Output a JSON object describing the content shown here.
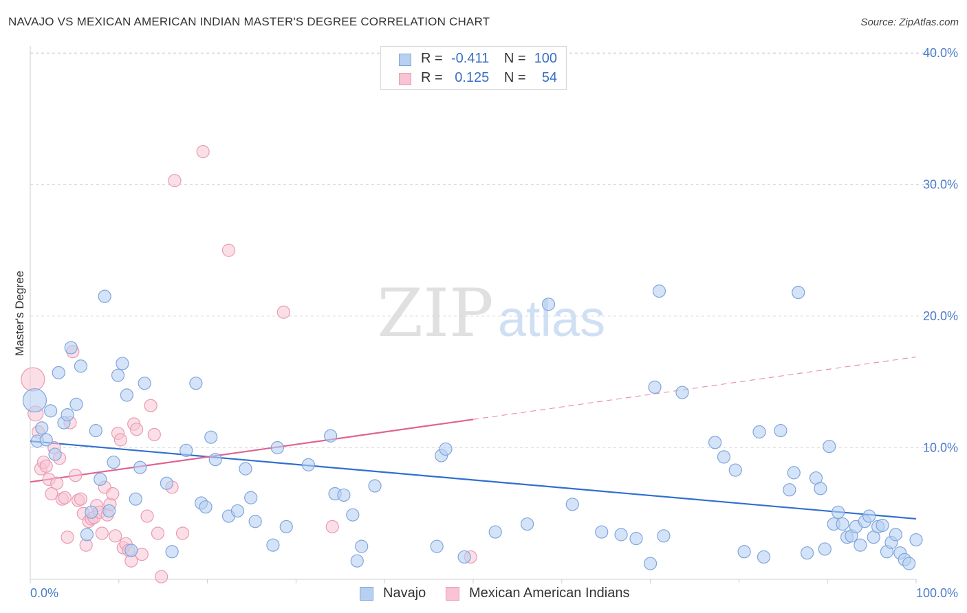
{
  "title": "NAVAJO VS MEXICAN AMERICAN INDIAN MASTER'S DEGREE CORRELATION CHART",
  "source": "Source: ZipAtlas.com",
  "watermark": {
    "zip": "ZIP",
    "atlas": "atlas"
  },
  "colors": {
    "navajo_fill": "#b7d0f2",
    "navajo_stroke": "#7ea6dc",
    "navajo_line": "#2f6fd1",
    "mexican_fill": "#f8c4d3",
    "mexican_stroke": "#ea9ab2",
    "mexican_line": "#e0628f",
    "tick_text": "#4a7cc9",
    "grid": "#dddddd"
  },
  "legend": {
    "rows": [
      {
        "r_label": "R =",
        "r_value": "-0.411",
        "n_label": "N =",
        "n_value": "100"
      },
      {
        "r_label": "R =",
        "r_value": "0.125",
        "n_label": "N =",
        "n_value": "54"
      }
    ]
  },
  "chart_data": {
    "type": "scatter",
    "title": "NAVAJO VS MEXICAN AMERICAN INDIAN MASTER'S DEGREE CORRELATION CHART",
    "xlabel": "",
    "ylabel": "Master's Degree",
    "xlim": [
      0,
      100
    ],
    "ylim": [
      0,
      42
    ],
    "x_tick_labels": [
      "0.0%",
      "100.0%"
    ],
    "y_ticks": [
      10,
      20,
      30,
      40
    ],
    "y_tick_labels": [
      "10.0%",
      "20.0%",
      "30.0%",
      "40.0%"
    ],
    "grid": true,
    "legend_position": "bottom",
    "series": [
      {
        "name": "Navajo",
        "r": -0.411,
        "n": 100,
        "trend": {
          "x": [
            0,
            100
          ],
          "y": [
            10.5,
            4.6
          ]
        },
        "points": [
          [
            0.5,
            13.6
          ],
          [
            0.8,
            10.5
          ],
          [
            1.3,
            11.5
          ],
          [
            1.8,
            10.6
          ],
          [
            2.3,
            12.8
          ],
          [
            2.8,
            9.5
          ],
          [
            3.2,
            15.7
          ],
          [
            3.8,
            11.9
          ],
          [
            4.2,
            12.5
          ],
          [
            4.6,
            17.6
          ],
          [
            5.2,
            13.3
          ],
          [
            5.7,
            16.2
          ],
          [
            6.4,
            3.4
          ],
          [
            6.9,
            5.1
          ],
          [
            7.4,
            11.3
          ],
          [
            7.9,
            7.6
          ],
          [
            8.4,
            21.5
          ],
          [
            8.9,
            5.2
          ],
          [
            9.4,
            8.9
          ],
          [
            9.9,
            15.5
          ],
          [
            10.4,
            16.4
          ],
          [
            10.9,
            14.0
          ],
          [
            11.4,
            2.2
          ],
          [
            11.9,
            6.1
          ],
          [
            12.4,
            8.5
          ],
          [
            12.9,
            14.9
          ],
          [
            15.4,
            7.3
          ],
          [
            16.0,
            2.1
          ],
          [
            17.6,
            9.8
          ],
          [
            18.7,
            14.9
          ],
          [
            19.3,
            5.8
          ],
          [
            19.8,
            5.5
          ],
          [
            20.4,
            10.8
          ],
          [
            20.9,
            9.1
          ],
          [
            22.4,
            4.8
          ],
          [
            23.4,
            5.2
          ],
          [
            24.3,
            8.4
          ],
          [
            24.9,
            6.2
          ],
          [
            25.4,
            4.4
          ],
          [
            27.4,
            2.6
          ],
          [
            27.9,
            10.0
          ],
          [
            28.9,
            4.0
          ],
          [
            31.4,
            8.7
          ],
          [
            33.9,
            10.9
          ],
          [
            34.4,
            6.5
          ],
          [
            35.4,
            6.4
          ],
          [
            36.4,
            4.9
          ],
          [
            36.9,
            1.4
          ],
          [
            37.4,
            2.5
          ],
          [
            38.9,
            7.1
          ],
          [
            45.9,
            2.5
          ],
          [
            46.4,
            9.4
          ],
          [
            46.9,
            9.9
          ],
          [
            49.0,
            1.7
          ],
          [
            52.5,
            3.6
          ],
          [
            56.1,
            4.2
          ],
          [
            58.5,
            20.9
          ],
          [
            61.2,
            5.7
          ],
          [
            64.5,
            3.6
          ],
          [
            66.7,
            3.4
          ],
          [
            68.4,
            3.1
          ],
          [
            70.0,
            1.2
          ],
          [
            70.5,
            14.6
          ],
          [
            71.0,
            21.9
          ],
          [
            71.5,
            3.3
          ],
          [
            73.6,
            14.2
          ],
          [
            77.3,
            10.4
          ],
          [
            78.3,
            9.3
          ],
          [
            79.6,
            8.3
          ],
          [
            80.6,
            2.1
          ],
          [
            82.3,
            11.2
          ],
          [
            82.8,
            1.7
          ],
          [
            84.7,
            11.3
          ],
          [
            85.7,
            6.8
          ],
          [
            86.2,
            8.1
          ],
          [
            86.7,
            21.8
          ],
          [
            87.7,
            2.0
          ],
          [
            88.7,
            7.7
          ],
          [
            89.2,
            6.9
          ],
          [
            89.7,
            2.3
          ],
          [
            90.2,
            10.1
          ],
          [
            90.7,
            4.2
          ],
          [
            91.2,
            5.1
          ],
          [
            91.7,
            4.2
          ],
          [
            92.2,
            3.2
          ],
          [
            92.7,
            3.3
          ],
          [
            93.2,
            4.0
          ],
          [
            93.7,
            2.6
          ],
          [
            94.2,
            4.4
          ],
          [
            94.7,
            4.8
          ],
          [
            95.2,
            3.2
          ],
          [
            95.7,
            4.0
          ],
          [
            96.2,
            4.1
          ],
          [
            96.7,
            2.1
          ],
          [
            97.2,
            2.8
          ],
          [
            97.7,
            3.4
          ],
          [
            98.2,
            2.0
          ],
          [
            98.7,
            1.5
          ],
          [
            99.2,
            1.2
          ],
          [
            100.0,
            3.0
          ]
        ]
      },
      {
        "name": "Mexican American Indians",
        "r": 0.125,
        "n": 54,
        "trend": {
          "x": [
            0,
            100
          ],
          "y": [
            7.4,
            16.9
          ]
        },
        "points": [
          [
            0.3,
            15.2
          ],
          [
            0.6,
            12.6
          ],
          [
            0.9,
            11.2
          ],
          [
            1.2,
            8.4
          ],
          [
            1.5,
            8.9
          ],
          [
            1.8,
            8.6
          ],
          [
            2.1,
            7.6
          ],
          [
            2.4,
            6.5
          ],
          [
            2.7,
            10.0
          ],
          [
            3.0,
            7.3
          ],
          [
            3.3,
            9.2
          ],
          [
            3.6,
            6.1
          ],
          [
            3.9,
            6.2
          ],
          [
            4.2,
            3.2
          ],
          [
            4.5,
            11.9
          ],
          [
            4.8,
            17.3
          ],
          [
            5.1,
            7.9
          ],
          [
            5.4,
            6.0
          ],
          [
            5.7,
            6.1
          ],
          [
            6.0,
            5.0
          ],
          [
            6.3,
            2.6
          ],
          [
            6.6,
            4.4
          ],
          [
            6.9,
            4.6
          ],
          [
            7.2,
            4.7
          ],
          [
            7.5,
            5.6
          ],
          [
            7.8,
            5.1
          ],
          [
            8.1,
            3.5
          ],
          [
            8.4,
            7.0
          ],
          [
            8.7,
            4.9
          ],
          [
            9.0,
            5.7
          ],
          [
            9.3,
            6.5
          ],
          [
            9.6,
            3.3
          ],
          [
            9.9,
            11.1
          ],
          [
            10.2,
            10.6
          ],
          [
            10.5,
            2.4
          ],
          [
            10.8,
            2.7
          ],
          [
            11.1,
            2.2
          ],
          [
            11.4,
            1.4
          ],
          [
            11.7,
            11.8
          ],
          [
            12.0,
            11.4
          ],
          [
            12.6,
            1.9
          ],
          [
            13.2,
            4.8
          ],
          [
            13.6,
            13.2
          ],
          [
            14.0,
            11.0
          ],
          [
            14.4,
            3.5
          ],
          [
            14.8,
            0.2
          ],
          [
            16.0,
            7.0
          ],
          [
            16.3,
            30.3
          ],
          [
            17.2,
            3.5
          ],
          [
            19.5,
            32.5
          ],
          [
            22.4,
            25.0
          ],
          [
            28.6,
            20.3
          ],
          [
            34.1,
            4.0
          ],
          [
            49.7,
            1.7
          ]
        ]
      }
    ]
  }
}
